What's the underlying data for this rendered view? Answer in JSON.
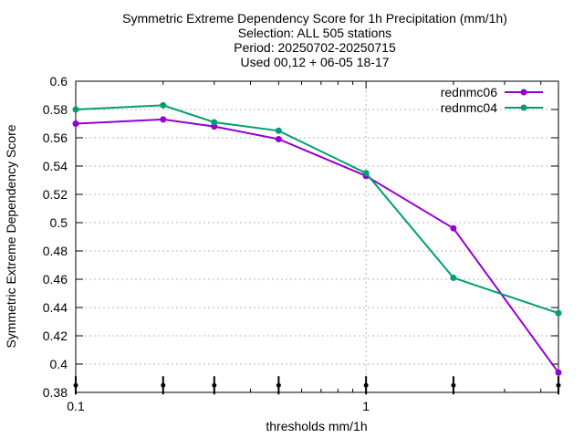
{
  "chart_data": {
    "type": "line",
    "title_lines": [
      "Symmetric Extreme Dependency Score  for 1h Precipitation (mm/1h)",
      "Selection: ALL    505 stations",
      "Period: 20250702-20250715",
      "Used 00,12 + 06-05 18-17"
    ],
    "xlabel": "thresholds mm/1h",
    "ylabel": "Symmetric Extreme Dependency Score",
    "x_scale": "log",
    "xlim": [
      0.1,
      4.6
    ],
    "ylim": [
      0.38,
      0.6
    ],
    "x_ticks": [
      0.1,
      1
    ],
    "x_tick_labels": [
      "0.1",
      "1"
    ],
    "y_ticks": [
      0.38,
      0.4,
      0.42,
      0.44,
      0.46,
      0.48,
      0.5,
      0.52,
      0.54,
      0.56,
      0.58,
      0.6
    ],
    "y_tick_labels": [
      "0.38",
      "0.4",
      "0.42",
      "0.44",
      "0.46",
      "0.48",
      "0.5",
      "0.52",
      "0.54",
      "0.56",
      "0.58",
      "0.6"
    ],
    "grid": true,
    "legend_position": "top-right",
    "x": [
      0.1,
      0.2,
      0.3,
      0.5,
      1,
      2,
      4.6
    ],
    "series": [
      {
        "name": "rednmc06",
        "color": "#9400d3",
        "values": [
          0.57,
          0.573,
          0.568,
          0.559,
          0.533,
          0.496,
          0.394
        ]
      },
      {
        "name": "rednmc04",
        "color": "#009e73",
        "values": [
          0.58,
          0.583,
          0.571,
          0.565,
          0.535,
          0.461,
          0.436
        ]
      }
    ],
    "sample_markers": {
      "y": [
        0.385,
        0.385,
        0.385,
        0.385,
        0.385,
        0.385,
        0.385
      ]
    }
  }
}
